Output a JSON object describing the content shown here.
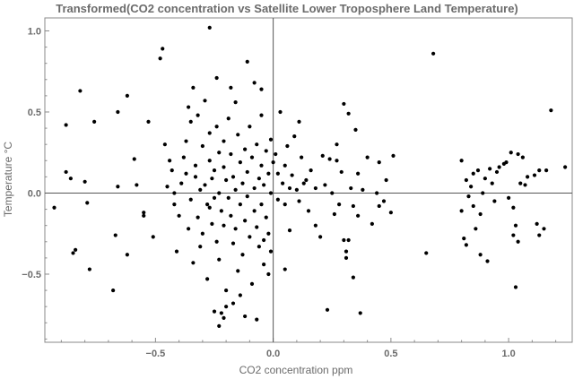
{
  "chart_data": {
    "type": "scatter",
    "title": "Transformed(CO2 concentration vs Satellite Lower Troposphere Land Temperature)",
    "xlabel": "CO2 concentration ppm",
    "ylabel": "Temperature °C",
    "xlim": [
      -0.97,
      1.27
    ],
    "ylim": [
      -0.92,
      1.08
    ],
    "xticks": [
      -0.5,
      0.0,
      0.5,
      1.0
    ],
    "xtick_labels": [
      "−0.5",
      "0.0",
      "0.5",
      "1.0"
    ],
    "yticks": [
      -0.5,
      0.0,
      0.5,
      1.0
    ],
    "ytick_labels": [
      "−0.5",
      "0.0",
      "0.5",
      "1.0"
    ],
    "zero_lines": true,
    "grid": false,
    "points": [
      [
        -0.93,
        -0.09
      ],
      [
        -0.88,
        0.42
      ],
      [
        -0.88,
        0.13
      ],
      [
        -0.86,
        0.09
      ],
      [
        -0.85,
        -0.37
      ],
      [
        -0.84,
        -0.35
      ],
      [
        -0.82,
        0.63
      ],
      [
        -0.8,
        0.07
      ],
      [
        -0.79,
        -0.06
      ],
      [
        -0.78,
        -0.47
      ],
      [
        -0.76,
        0.44
      ],
      [
        -0.68,
        -0.6
      ],
      [
        -0.67,
        -0.26
      ],
      [
        -0.66,
        0.5
      ],
      [
        -0.66,
        0.04
      ],
      [
        -0.62,
        0.6
      ],
      [
        -0.62,
        -0.38
      ],
      [
        -0.59,
        0.21
      ],
      [
        -0.58,
        0.05
      ],
      [
        -0.55,
        -0.12
      ],
      [
        -0.55,
        -0.14
      ],
      [
        -0.53,
        0.44
      ],
      [
        -0.51,
        -0.27
      ],
      [
        -0.48,
        0.83
      ],
      [
        -0.47,
        0.89
      ],
      [
        -0.45,
        0.04
      ],
      [
        -0.46,
        0.3
      ],
      [
        -0.44,
        0.2
      ],
      [
        -0.43,
        0.14
      ],
      [
        -0.42,
        0.0
      ],
      [
        -0.42,
        -0.07
      ],
      [
        -0.41,
        -0.36
      ],
      [
        -0.4,
        -0.14
      ],
      [
        -0.39,
        0.06
      ],
      [
        -0.38,
        0.22
      ],
      [
        -0.37,
        0.12
      ],
      [
        -0.37,
        0.32
      ],
      [
        -0.36,
        -0.22
      ],
      [
        -0.35,
        -0.04
      ],
      [
        -0.35,
        0.44
      ],
      [
        -0.34,
        0.65
      ],
      [
        -0.34,
        -0.43
      ],
      [
        -0.33,
        0.17
      ],
      [
        -0.33,
        0.1
      ],
      [
        -0.32,
        -0.15
      ],
      [
        -0.31,
        0.02
      ],
      [
        -0.31,
        -0.33
      ],
      [
        -0.3,
        0.29
      ],
      [
        -0.3,
        -0.25
      ],
      [
        -0.29,
        0.57
      ],
      [
        -0.29,
        0.05
      ],
      [
        -0.28,
        -0.07
      ],
      [
        -0.28,
        -0.53
      ],
      [
        -0.27,
        0.37
      ],
      [
        -0.27,
        0.2
      ],
      [
        -0.27,
        -0.09
      ],
      [
        -0.26,
        0.09
      ],
      [
        -0.26,
        -0.19
      ],
      [
        -0.25,
        0.14
      ],
      [
        -0.25,
        -0.03
      ],
      [
        -0.24,
        0.41
      ],
      [
        -0.24,
        0.71
      ],
      [
        -0.24,
        -0.3
      ],
      [
        -0.23,
        -0.41
      ],
      [
        -0.23,
        0.25
      ],
      [
        -0.23,
        0.0
      ],
      [
        -0.22,
        -0.11
      ],
      [
        -0.22,
        -0.74
      ],
      [
        -0.21,
        0.32
      ],
      [
        -0.21,
        0.16
      ],
      [
        -0.21,
        -0.2
      ],
      [
        -0.2,
        0.08
      ],
      [
        -0.2,
        -0.6
      ],
      [
        -0.2,
        -0.7
      ],
      [
        -0.19,
        0.46
      ],
      [
        -0.19,
        -0.03
      ],
      [
        -0.18,
        0.65
      ],
      [
        -0.18,
        0.24
      ],
      [
        -0.18,
        -0.14
      ],
      [
        -0.17,
        0.1
      ],
      [
        -0.17,
        -0.31
      ],
      [
        -0.16,
        0.02
      ],
      [
        -0.16,
        -0.22
      ],
      [
        -0.15,
        0.36
      ],
      [
        -0.15,
        -0.48
      ],
      [
        -0.14,
        0.19
      ],
      [
        -0.14,
        -0.07
      ],
      [
        -0.13,
        0.06
      ],
      [
        -0.13,
        -0.38
      ],
      [
        -0.12,
        0.27
      ],
      [
        -0.12,
        -0.17
      ],
      [
        -0.11,
        0.13
      ],
      [
        -0.11,
        -0.02
      ],
      [
        -0.1,
        0.41
      ],
      [
        -0.1,
        -0.27
      ],
      [
        -0.09,
        0.22
      ],
      [
        -0.09,
        -0.56
      ],
      [
        -0.08,
        0.03
      ],
      [
        -0.08,
        -0.11
      ],
      [
        -0.07,
        0.3
      ],
      [
        -0.07,
        -0.21
      ],
      [
        -0.06,
        0.09
      ],
      [
        -0.06,
        -0.33
      ],
      [
        -0.05,
        0.17
      ],
      [
        -0.05,
        -0.07
      ],
      [
        -0.04,
        0.05
      ],
      [
        -0.04,
        -0.44
      ],
      [
        -0.03,
        0.26
      ],
      [
        -0.03,
        -0.15
      ],
      [
        -0.02,
        0.12
      ],
      [
        -0.02,
        -0.25
      ],
      [
        -0.01,
        0.0
      ],
      [
        -0.01,
        -0.36
      ],
      [
        0.0,
        0.19
      ],
      [
        -0.11,
        0.81
      ],
      [
        -0.08,
        0.68
      ],
      [
        -0.05,
        0.64
      ],
      [
        -0.14,
        -0.63
      ],
      [
        -0.17,
        -0.68
      ],
      [
        -0.21,
        -0.77
      ],
      [
        -0.25,
        -0.73
      ],
      [
        -0.27,
        1.02
      ],
      [
        -0.12,
        -0.76
      ],
      [
        -0.07,
        -0.78
      ],
      [
        -0.23,
        -0.82
      ],
      [
        -0.32,
        0.48
      ],
      [
        -0.36,
        0.53
      ],
      [
        -0.16,
        0.56
      ],
      [
        -0.05,
        0.48
      ],
      [
        -0.01,
        0.33
      ],
      [
        -0.02,
        -0.5
      ],
      [
        -0.04,
        -0.29
      ],
      [
        0.01,
        0.24
      ],
      [
        0.02,
        0.12
      ],
      [
        0.02,
        -0.04
      ],
      [
        0.03,
        0.5
      ],
      [
        0.04,
        0.06
      ],
      [
        0.05,
        0.17
      ],
      [
        0.05,
        -0.07
      ],
      [
        0.06,
        0.29
      ],
      [
        0.07,
        0.03
      ],
      [
        0.07,
        -0.23
      ],
      [
        0.08,
        0.11
      ],
      [
        0.09,
        0.35
      ],
      [
        0.1,
        0.02
      ],
      [
        0.11,
        -0.05
      ],
      [
        0.12,
        0.22
      ],
      [
        0.13,
        0.06
      ],
      [
        0.15,
        -0.11
      ],
      [
        0.16,
        0.14
      ],
      [
        0.18,
        0.03
      ],
      [
        0.2,
        -0.27
      ],
      [
        0.21,
        0.23
      ],
      [
        0.22,
        0.05
      ],
      [
        0.24,
        0.21
      ],
      [
        0.25,
        0.0
      ],
      [
        0.26,
        -0.13
      ],
      [
        0.27,
        0.3
      ],
      [
        0.28,
        -0.07
      ],
      [
        0.29,
        0.13
      ],
      [
        0.3,
        0.55
      ],
      [
        0.3,
        -0.29
      ],
      [
        0.31,
        -0.36
      ],
      [
        0.31,
        -0.4
      ],
      [
        0.32,
        0.49
      ],
      [
        0.32,
        -0.29
      ],
      [
        0.33,
        0.03
      ],
      [
        0.34,
        -0.08
      ],
      [
        0.34,
        -0.52
      ],
      [
        0.35,
        0.39
      ],
      [
        0.36,
        0.12
      ],
      [
        0.36,
        -0.14
      ],
      [
        0.37,
        -0.74
      ],
      [
        0.38,
        0.02
      ],
      [
        0.4,
        0.22
      ],
      [
        0.42,
        -0.19
      ],
      [
        0.44,
        0.0
      ],
      [
        0.45,
        0.19
      ],
      [
        0.47,
        -0.05
      ],
      [
        0.48,
        0.08
      ],
      [
        0.5,
        -0.12
      ],
      [
        0.51,
        0.23
      ],
      [
        0.23,
        -0.72
      ],
      [
        0.05,
        -0.47
      ],
      [
        0.14,
        0.08
      ],
      [
        0.11,
        0.44
      ],
      [
        0.18,
        -0.2
      ],
      [
        0.27,
        0.2
      ],
      [
        0.45,
        -0.08
      ],
      [
        0.65,
        -0.37
      ],
      [
        0.68,
        0.86
      ],
      [
        0.8,
        -0.11
      ],
      [
        0.8,
        0.2
      ],
      [
        0.81,
        -0.28
      ],
      [
        0.82,
        -0.32
      ],
      [
        0.82,
        0.08
      ],
      [
        0.83,
        -0.02
      ],
      [
        0.84,
        0.04
      ],
      [
        0.85,
        -0.08
      ],
      [
        0.86,
        -0.22
      ],
      [
        0.87,
        0.14
      ],
      [
        0.88,
        -0.13
      ],
      [
        0.88,
        -0.38
      ],
      [
        0.89,
        0.0
      ],
      [
        0.9,
        0.09
      ],
      [
        0.91,
        -0.42
      ],
      [
        0.92,
        0.15
      ],
      [
        0.94,
        -0.05
      ],
      [
        0.95,
        0.13
      ],
      [
        0.96,
        0.16
      ],
      [
        0.98,
        0.18
      ],
      [
        0.99,
        0.19
      ],
      [
        1.0,
        -0.03
      ],
      [
        1.01,
        0.25
      ],
      [
        1.02,
        -0.09
      ],
      [
        1.03,
        -0.58
      ],
      [
        1.03,
        -0.2
      ],
      [
        1.04,
        0.24
      ],
      [
        1.04,
        -0.3
      ],
      [
        1.05,
        0.06
      ],
      [
        1.06,
        0.22
      ],
      [
        1.07,
        0.05
      ],
      [
        1.11,
        0.11
      ],
      [
        1.12,
        -0.19
      ],
      [
        1.13,
        0.14
      ],
      [
        1.13,
        -0.26
      ],
      [
        1.15,
        -0.22
      ],
      [
        1.16,
        0.14
      ],
      [
        1.18,
        0.51
      ],
      [
        1.24,
        0.16
      ],
      [
        1.02,
        -0.26
      ],
      [
        0.85,
        0.12
      ],
      [
        0.93,
        0.06
      ],
      [
        1.08,
        0.1
      ]
    ]
  }
}
